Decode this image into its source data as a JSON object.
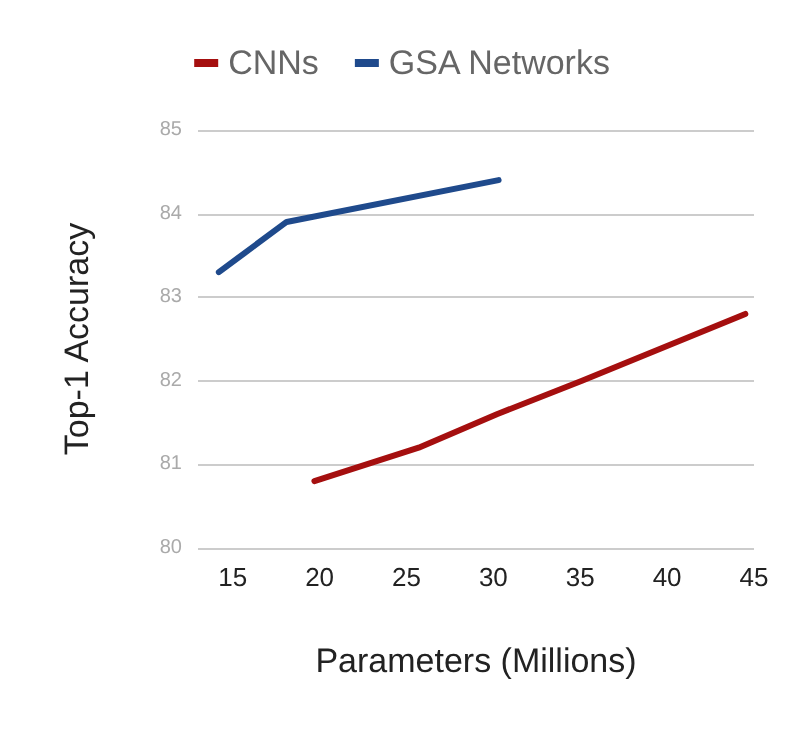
{
  "chart_data": {
    "type": "line",
    "xlabel": "Parameters (Millions)",
    "ylabel": "Top-1 Accuracy",
    "xlim": [
      13,
      45
    ],
    "xticks": [
      15,
      20,
      25,
      30,
      35,
      40,
      45
    ],
    "ylim": [
      80,
      85
    ],
    "yticks": [
      80,
      81,
      82,
      83,
      84,
      85
    ],
    "grid": "y",
    "legend": "top",
    "marker": "none",
    "line_style": "solid",
    "series": [
      {
        "name": "CNNs",
        "color": "#a50f0f",
        "x": [
          19.7,
          25.7,
          30.2,
          35.1,
          44.5
        ],
        "values": [
          80.8,
          81.2,
          81.6,
          82.0,
          82.8
        ]
      },
      {
        "name": "GSA Networks",
        "color": "#1f4a8c",
        "x": [
          14.2,
          18.1,
          30.3
        ],
        "values": [
          83.3,
          83.9,
          84.4
        ]
      }
    ]
  }
}
